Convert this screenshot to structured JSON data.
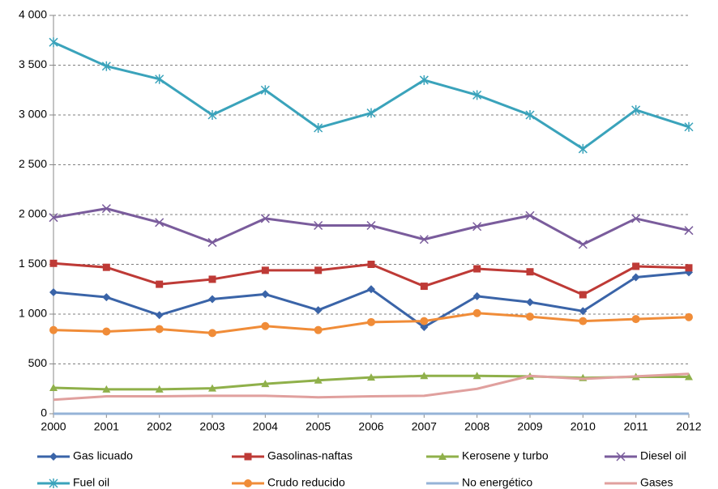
{
  "chart_data": {
    "type": "line",
    "x": [
      2000,
      2001,
      2002,
      2003,
      2004,
      2005,
      2006,
      2007,
      2008,
      2009,
      2010,
      2011,
      2012
    ],
    "xlim": [
      2000,
      2012
    ],
    "xticks": [
      2000,
      2001,
      2002,
      2003,
      2004,
      2005,
      2006,
      2007,
      2008,
      2009,
      2010,
      2011,
      2012
    ],
    "ylim": [
      0,
      4000
    ],
    "yticks": [
      0,
      500,
      {
        "value": 1000,
        "label": "1 000"
      },
      {
        "value": 1500,
        "label": "1 500"
      },
      {
        "value": 2000,
        "label": "2 000"
      },
      {
        "value": 2500,
        "label": "2 500"
      },
      {
        "value": 3000,
        "label": "3 000"
      },
      {
        "value": 3500,
        "label": "3 500"
      },
      {
        "value": 4000,
        "label": "4 000"
      }
    ],
    "grid": true,
    "legend": "bottom",
    "series": [
      {
        "name": "Gas licuado",
        "color": "#3a64a8",
        "marker": "diamond",
        "values": [
          1220,
          1170,
          990,
          1150,
          1200,
          1040,
          1250,
          870,
          1180,
          1120,
          1030,
          1370,
          1420
        ]
      },
      {
        "name": "Gasolinas-naftas",
        "color": "#be3a36",
        "marker": "square",
        "values": [
          1510,
          1470,
          1300,
          1350,
          1440,
          1440,
          1500,
          1280,
          1455,
          1425,
          1195,
          1480,
          1465
        ]
      },
      {
        "name": "Kerosene y turbo",
        "color": "#8fb04a",
        "marker": "triangle",
        "values": [
          260,
          245,
          245,
          255,
          300,
          335,
          365,
          380,
          380,
          375,
          360,
          370,
          370
        ]
      },
      {
        "name": "Diesel oil",
        "color": "#7a5c9c",
        "marker": "x",
        "values": [
          1970,
          2060,
          1920,
          1720,
          1960,
          1890,
          1890,
          1750,
          1880,
          1990,
          1700,
          1960,
          1840
        ]
      },
      {
        "name": "Fuel oil",
        "color": "#3aa3bb",
        "marker": "asterisk",
        "values": [
          3730,
          3490,
          3360,
          3000,
          3250,
          2870,
          3020,
          3350,
          3200,
          3000,
          2660,
          3050,
          2880
        ]
      },
      {
        "name": "Crudo reducido",
        "color": "#f08c38",
        "marker": "circle",
        "values": [
          840,
          825,
          850,
          810,
          880,
          840,
          920,
          930,
          1010,
          975,
          930,
          950,
          970
        ]
      },
      {
        "name": "No energético",
        "color": "#95b3d7",
        "marker": "none",
        "values": [
          0,
          0,
          0,
          0,
          0,
          0,
          0,
          0,
          0,
          0,
          0,
          0,
          0
        ]
      },
      {
        "name": "Gases",
        "color": "#e0a09e",
        "marker": "none",
        "values": [
          140,
          175,
          175,
          180,
          180,
          165,
          175,
          180,
          250,
          380,
          350,
          375,
          400
        ]
      }
    ]
  }
}
